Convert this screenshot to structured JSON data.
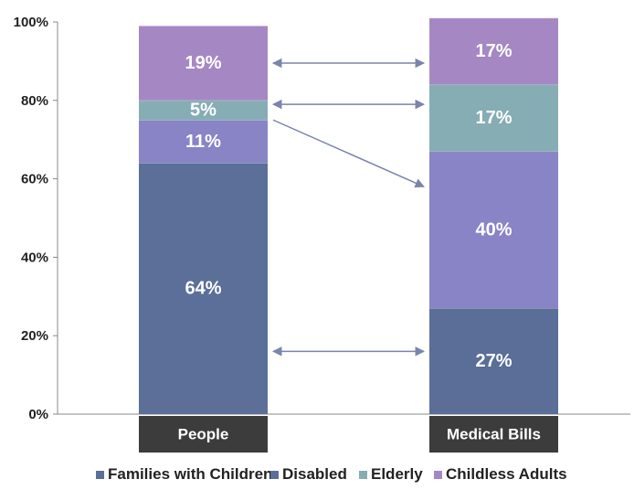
{
  "chart_data": {
    "type": "bar",
    "stacked": true,
    "categories": [
      "People",
      "Medical Bills"
    ],
    "yticks": [
      "0%",
      "20%",
      "40%",
      "60%",
      "80%",
      "100%"
    ],
    "ylim": [
      0,
      100
    ],
    "series": [
      {
        "name": "Families with Children",
        "values": [
          64,
          0
        ],
        "labels": [
          "64%",
          ""
        ],
        "color": "#5b6f99"
      },
      {
        "name": "Disabled",
        "values": [
          0,
          27
        ],
        "labels": [
          "",
          "27%"
        ],
        "color": "#5a6e98"
      },
      {
        "name": "Elderly",
        "values": [
          5,
          17
        ],
        "labels": [
          "5%",
          "17%"
        ],
        "color": "#86adb3"
      },
      {
        "name": "Childless Adults",
        "values": [
          19,
          17
        ],
        "labels": [
          "19%",
          "17%"
        ],
        "color": "#a588c3"
      }
    ],
    "extra_segment": {
      "name": "",
      "values": [
        11,
        40
      ],
      "labels": [
        "11%",
        "40%"
      ],
      "color": "#8884c6"
    },
    "legend_placement": "bottom",
    "arrows": true
  }
}
